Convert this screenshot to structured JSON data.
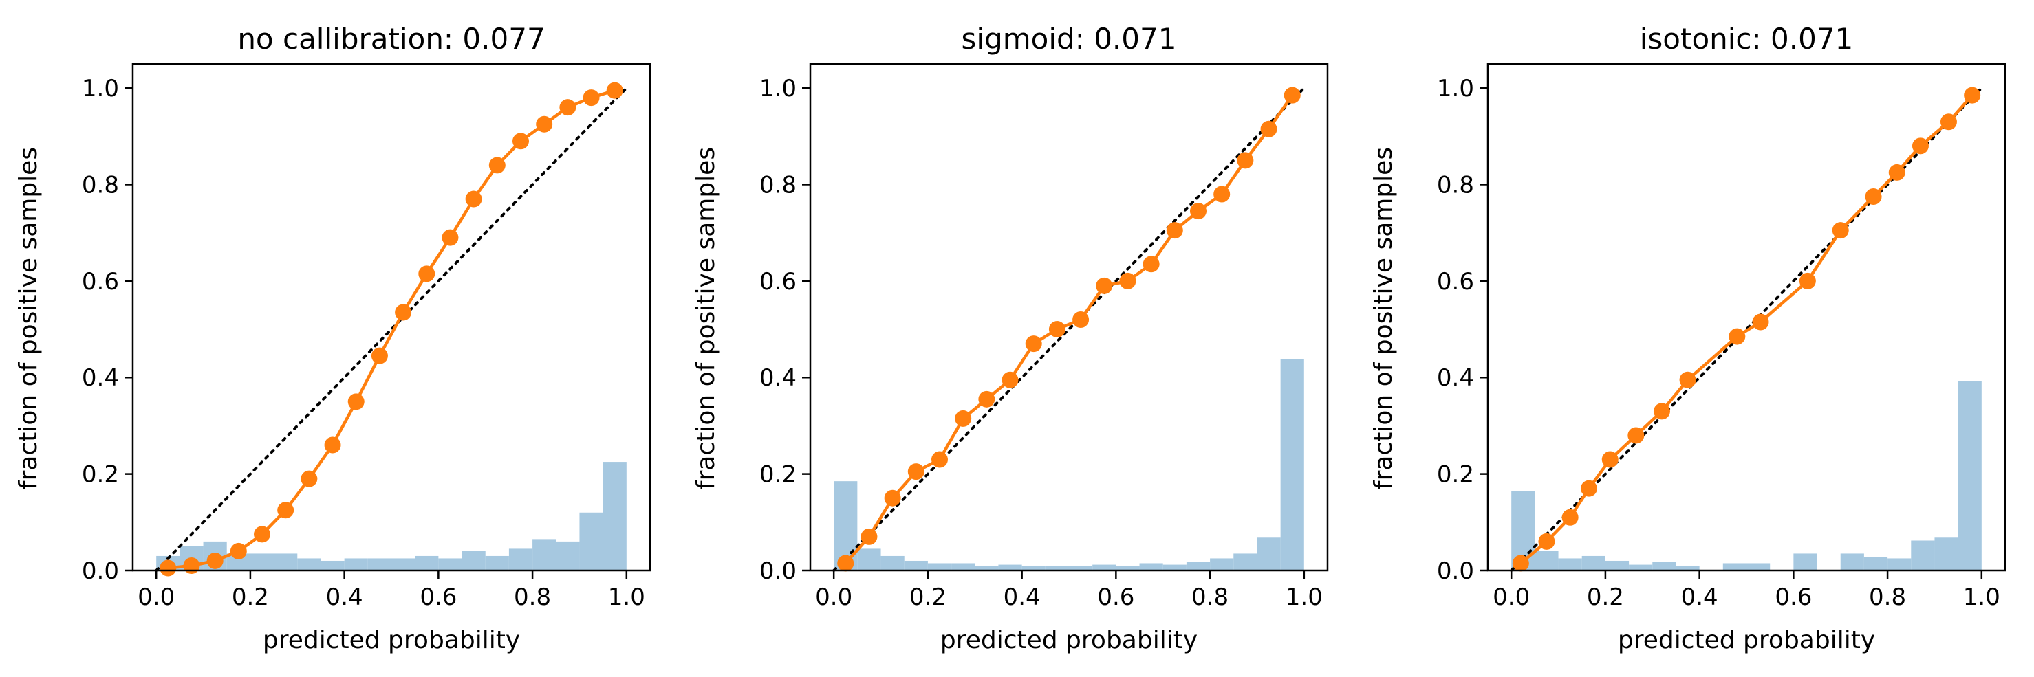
{
  "colors": {
    "line": "#ff7f0e",
    "hist": "#a6c8e0",
    "diagonal": "#000000",
    "axes": "#000000"
  },
  "chart_data": [
    {
      "type": "line",
      "title": "no callibration: 0.077",
      "xlabel": "predicted probability",
      "ylabel": "fraction of positive samples",
      "xlim": [
        -0.05,
        1.05
      ],
      "ylim": [
        0.0,
        1.05
      ],
      "xticks": [
        "0.0",
        "0.2",
        "0.4",
        "0.6",
        "0.8",
        "1.0"
      ],
      "yticks": [
        "0.0",
        "0.2",
        "0.4",
        "0.6",
        "0.8",
        "1.0"
      ],
      "grid": false,
      "diagonal": [
        [
          0,
          0
        ],
        [
          1,
          1
        ]
      ],
      "series": [
        {
          "x": [
            0.025,
            0.075,
            0.125,
            0.175,
            0.225,
            0.275,
            0.325,
            0.375,
            0.425,
            0.475,
            0.525,
            0.575,
            0.625,
            0.675,
            0.725,
            0.775,
            0.825,
            0.875,
            0.925,
            0.975
          ],
          "y": [
            0.005,
            0.01,
            0.02,
            0.04,
            0.075,
            0.125,
            0.19,
            0.26,
            0.35,
            0.445,
            0.535,
            0.615,
            0.69,
            0.77,
            0.84,
            0.89,
            0.925,
            0.96,
            0.98,
            0.995
          ]
        }
      ],
      "histogram": {
        "bin_edges": [
          0.0,
          0.05,
          0.1,
          0.15,
          0.2,
          0.25,
          0.3,
          0.35,
          0.4,
          0.45,
          0.5,
          0.55,
          0.6,
          0.65,
          0.7,
          0.75,
          0.8,
          0.85,
          0.9,
          0.95,
          1.0
        ],
        "heights": [
          0.03,
          0.05,
          0.06,
          0.035,
          0.035,
          0.035,
          0.025,
          0.02,
          0.025,
          0.025,
          0.025,
          0.03,
          0.025,
          0.04,
          0.03,
          0.045,
          0.065,
          0.06,
          0.12,
          0.225
        ]
      }
    },
    {
      "type": "line",
      "title": "sigmoid: 0.071",
      "xlabel": "predicted probability",
      "ylabel": "fraction of positive samples",
      "xlim": [
        -0.05,
        1.05
      ],
      "ylim": [
        0.0,
        1.05
      ],
      "xticks": [
        "0.0",
        "0.2",
        "0.4",
        "0.6",
        "0.8",
        "1.0"
      ],
      "yticks": [
        "0.0",
        "0.2",
        "0.4",
        "0.6",
        "0.8",
        "1.0"
      ],
      "grid": false,
      "diagonal": [
        [
          0,
          0
        ],
        [
          1,
          1
        ]
      ],
      "series": [
        {
          "x": [
            0.025,
            0.075,
            0.125,
            0.175,
            0.225,
            0.275,
            0.325,
            0.375,
            0.425,
            0.475,
            0.525,
            0.575,
            0.625,
            0.675,
            0.725,
            0.775,
            0.825,
            0.875,
            0.925,
            0.975
          ],
          "y": [
            0.015,
            0.07,
            0.15,
            0.205,
            0.23,
            0.315,
            0.355,
            0.395,
            0.47,
            0.5,
            0.52,
            0.59,
            0.6,
            0.635,
            0.705,
            0.745,
            0.78,
            0.85,
            0.915,
            0.985
          ]
        }
      ],
      "histogram": {
        "bin_edges": [
          0.0,
          0.05,
          0.1,
          0.15,
          0.2,
          0.25,
          0.3,
          0.35,
          0.4,
          0.45,
          0.5,
          0.55,
          0.6,
          0.65,
          0.7,
          0.75,
          0.8,
          0.85,
          0.9,
          0.95,
          1.0
        ],
        "heights": [
          0.185,
          0.045,
          0.03,
          0.02,
          0.015,
          0.015,
          0.01,
          0.012,
          0.01,
          0.01,
          0.01,
          0.012,
          0.01,
          0.015,
          0.012,
          0.018,
          0.025,
          0.035,
          0.068,
          0.438
        ]
      }
    },
    {
      "type": "line",
      "title": "isotonic: 0.071",
      "xlabel": "predicted probability",
      "ylabel": "fraction of positive samples",
      "xlim": [
        -0.05,
        1.05
      ],
      "ylim": [
        0.0,
        1.05
      ],
      "xticks": [
        "0.0",
        "0.2",
        "0.4",
        "0.6",
        "0.8",
        "1.0"
      ],
      "yticks": [
        "0.0",
        "0.2",
        "0.4",
        "0.6",
        "0.8",
        "1.0"
      ],
      "grid": false,
      "diagonal": [
        [
          0,
          0
        ],
        [
          1,
          1
        ]
      ],
      "series": [
        {
          "x": [
            0.02,
            0.075,
            0.125,
            0.165,
            0.21,
            0.265,
            0.32,
            0.375,
            0.48,
            0.53,
            0.63,
            0.7,
            0.77,
            0.82,
            0.87,
            0.93,
            0.98
          ],
          "y": [
            0.015,
            0.06,
            0.11,
            0.17,
            0.23,
            0.28,
            0.33,
            0.395,
            0.485,
            0.515,
            0.6,
            0.705,
            0.775,
            0.825,
            0.88,
            0.93,
            0.985
          ]
        }
      ],
      "histogram": {
        "bin_edges": [
          0.0,
          0.05,
          0.1,
          0.15,
          0.2,
          0.25,
          0.3,
          0.35,
          0.4,
          0.45,
          0.5,
          0.55,
          0.6,
          0.65,
          0.7,
          0.75,
          0.8,
          0.85,
          0.9,
          0.95,
          1.0
        ],
        "heights": [
          0.165,
          0.04,
          0.025,
          0.03,
          0.02,
          0.012,
          0.018,
          0.01,
          0.0,
          0.015,
          0.015,
          0.0,
          0.035,
          0.0,
          0.035,
          0.028,
          0.025,
          0.062,
          0.068,
          0.393
        ]
      }
    }
  ]
}
